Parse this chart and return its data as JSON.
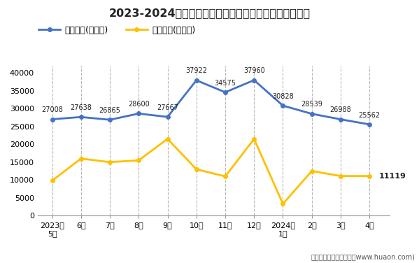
{
  "title": "2023-2024年荆州市商品收发货人所在地进、出口额统计",
  "x_labels": [
    "2023年\n5月",
    "6月",
    "7月",
    "8月",
    "9月",
    "10月",
    "11月",
    "12月",
    "2024年\n1月",
    "2月",
    "3月",
    "4月"
  ],
  "export_values": [
    27008,
    27638,
    26865,
    28600,
    27667,
    37922,
    34575,
    37960,
    30828,
    28539,
    26988,
    25562
  ],
  "import_values": [
    9800,
    16000,
    15000,
    15500,
    21500,
    13000,
    11000,
    21500,
    3300,
    12500,
    11119,
    11119
  ],
  "export_label": "出口总额(万美元)",
  "import_label": "进口总额(万美元)",
  "export_color": "#4472C4",
  "import_color": "#FFC000",
  "ylim": [
    0,
    42000
  ],
  "yticks": [
    0,
    5000,
    10000,
    15000,
    20000,
    25000,
    30000,
    35000,
    40000
  ],
  "footer": "制图：华经产业研究院（www.huaon.com)",
  "background_color": "#FFFFFF",
  "plot_bg_color": "#FFFFFF"
}
